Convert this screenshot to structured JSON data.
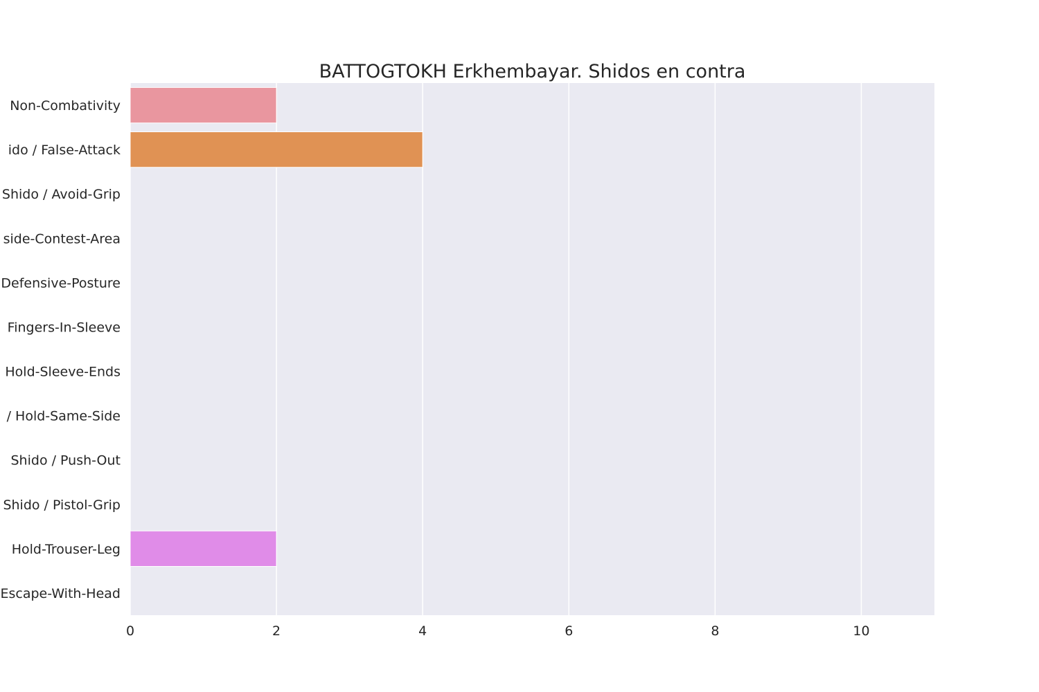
{
  "chart_data": {
    "type": "bar",
    "orientation": "horizontal",
    "title": "BATTOGTOKH Erkhembayar. Shidos en contra",
    "xlabel": "",
    "ylabel": "",
    "xlim": [
      0,
      11
    ],
    "xticks": [
      0,
      2,
      4,
      6,
      8,
      10
    ],
    "grid": true,
    "plot_bg": "#eaeaf2",
    "categories": [
      "Non-Combativity",
      "ido / False-Attack",
      "Shido / Avoid-Grip",
      "side-Contest-Area",
      "Defensive-Posture",
      "Fingers-In-Sleeve",
      "Hold-Sleeve-Ends",
      "/ Hold-Same-Side",
      "Shido / Push-Out",
      "Shido / Pistol-Grip",
      "Hold-Trouser-Leg",
      "Escape-With-Head"
    ],
    "values": [
      2,
      4,
      0,
      0,
      0,
      0,
      0,
      0,
      0,
      0,
      2,
      0
    ],
    "colors": [
      "#e9969f",
      "#e09254",
      "#c2a63f",
      "#a4b23f",
      "#5cba5e",
      "#4dba94",
      "#4db6aa",
      "#4fb1c2",
      "#56a8e0",
      "#a09bf0",
      "#e08ce8",
      "#e888c4"
    ]
  }
}
